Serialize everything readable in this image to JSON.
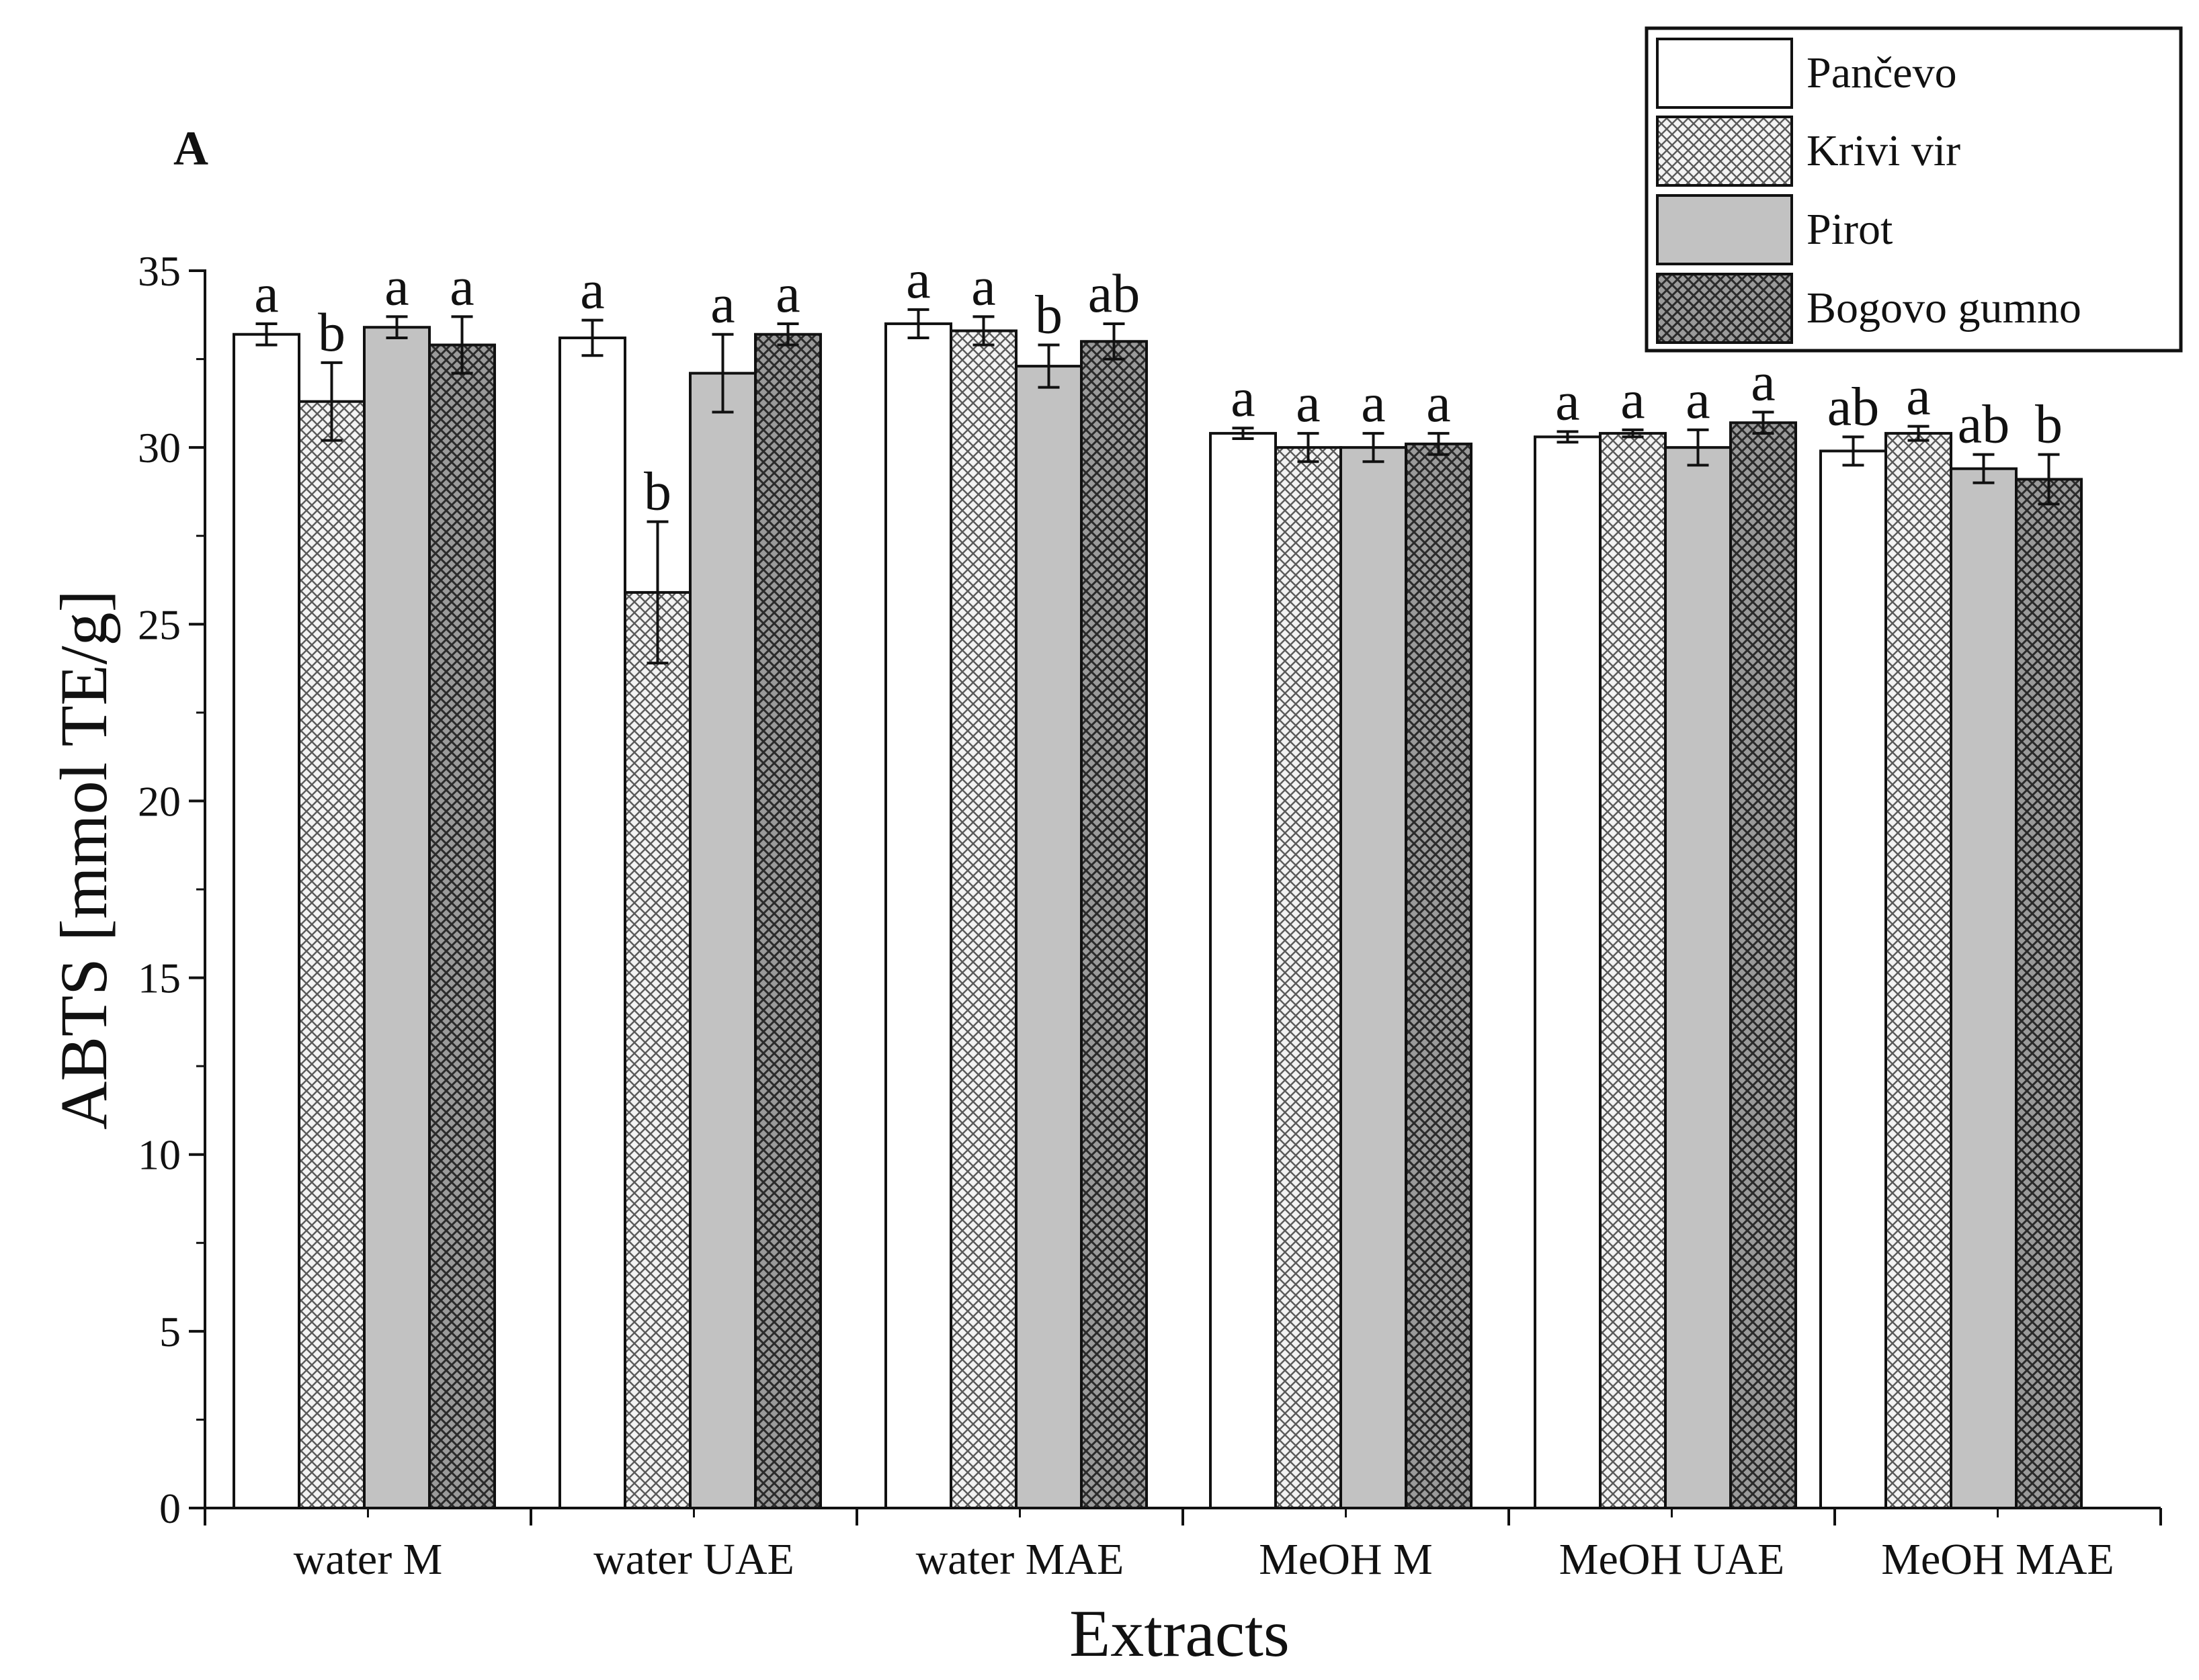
{
  "chart_data": {
    "type": "bar",
    "panel_label": "A",
    "xlabel": "Extracts",
    "ylabel": "ABTS [mmol TE/g]",
    "ylim": [
      0,
      35
    ],
    "yticks": [
      0,
      5,
      10,
      15,
      20,
      25,
      30,
      35
    ],
    "legend_position": "top-right",
    "categories": [
      "water M",
      "water UAE",
      "water MAE",
      "MeOH M",
      "MeOH UAE",
      "MeOH MAE"
    ],
    "series": [
      {
        "name": "Pančevo",
        "fill": "white",
        "values": [
          33.2,
          33.1,
          33.5,
          30.4,
          30.3,
          29.9
        ],
        "errors": [
          0.3,
          0.5,
          0.4,
          0.15,
          0.15,
          0.4
        ],
        "letters": [
          "a",
          "a",
          "a",
          "a",
          "a",
          "ab"
        ]
      },
      {
        "name": "Krivi vir",
        "fill": "crosshatch-light",
        "values": [
          31.3,
          25.9,
          33.3,
          30.0,
          30.4,
          30.4
        ],
        "errors": [
          1.1,
          2.0,
          0.4,
          0.4,
          0.1,
          0.2
        ],
        "letters": [
          "b",
          "b",
          "a",
          "a",
          "a",
          "a"
        ]
      },
      {
        "name": "Pirot",
        "fill": "gray",
        "values": [
          33.4,
          32.1,
          32.3,
          30.0,
          30.0,
          29.4
        ],
        "errors": [
          0.3,
          1.1,
          0.6,
          0.4,
          0.5,
          0.4
        ],
        "letters": [
          "a",
          "a",
          "b",
          "a",
          "a",
          "ab"
        ]
      },
      {
        "name": "Bogovo gumno",
        "fill": "crosshatch-dark",
        "values": [
          32.9,
          33.2,
          33.0,
          30.1,
          30.7,
          29.1
        ],
        "errors": [
          0.8,
          0.3,
          0.5,
          0.3,
          0.3,
          0.7
        ],
        "letters": [
          "a",
          "a",
          "ab",
          "a",
          "a",
          "b"
        ]
      }
    ]
  },
  "colors": {
    "axis": "#111111",
    "bar_outline": "#111111",
    "white_fill": "#ffffff",
    "light_hatch_bg": "#f3f3f3",
    "light_hatch_line": "#5a5a5a",
    "gray_fill": "#c2c2c2",
    "dark_hatch_bg": "#9a9a9a",
    "dark_hatch_line": "#2a2a2a"
  }
}
